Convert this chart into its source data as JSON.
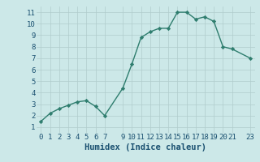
{
  "x": [
    0,
    1,
    2,
    3,
    4,
    5,
    6,
    7,
    9,
    10,
    11,
    12,
    13,
    14,
    15,
    16,
    17,
    18,
    19,
    20,
    21,
    23
  ],
  "y": [
    1.5,
    2.2,
    2.6,
    2.9,
    3.2,
    3.3,
    2.8,
    2.0,
    4.4,
    6.5,
    8.8,
    9.3,
    9.6,
    9.6,
    11.0,
    11.0,
    10.4,
    10.6,
    10.2,
    8.0,
    7.8,
    7.0
  ],
  "xlabel": "Humidex (Indice chaleur)",
  "xlim": [
    -0.5,
    23.5
  ],
  "ylim": [
    0.5,
    11.5
  ],
  "xticks": [
    0,
    1,
    2,
    3,
    4,
    5,
    6,
    7,
    9,
    10,
    11,
    12,
    13,
    14,
    15,
    16,
    17,
    18,
    19,
    20,
    21,
    23
  ],
  "yticks": [
    1,
    2,
    3,
    4,
    5,
    6,
    7,
    8,
    9,
    10,
    11
  ],
  "line_color": "#2e7d6e",
  "marker": "D",
  "marker_size": 2.2,
  "bg_color": "#cce8e8",
  "grid_color": "#b0cccc",
  "text_color": "#1a5070",
  "xlabel_fontsize": 7.5,
  "tick_fontsize": 6.5,
  "line_width": 1.0
}
